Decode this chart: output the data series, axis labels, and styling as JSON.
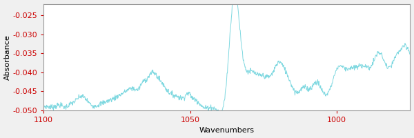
{
  "xlabel": "Wavenumbers",
  "ylabel": "Absorbance",
  "xlim": [
    1100,
    975
  ],
  "ylim": [
    -0.05,
    -0.022
  ],
  "yticks": [
    -0.05,
    -0.045,
    -0.04,
    -0.035,
    -0.03,
    -0.025
  ],
  "xticks": [
    1100,
    1050,
    1000
  ],
  "line_color": "#7fd8e0",
  "background_color": "#f0f0f0",
  "plot_bg_color": "#ffffff",
  "tick_color": "#cc0000",
  "axis_label_fontsize": 8,
  "tick_fontsize": 8,
  "linewidth": 0.7
}
